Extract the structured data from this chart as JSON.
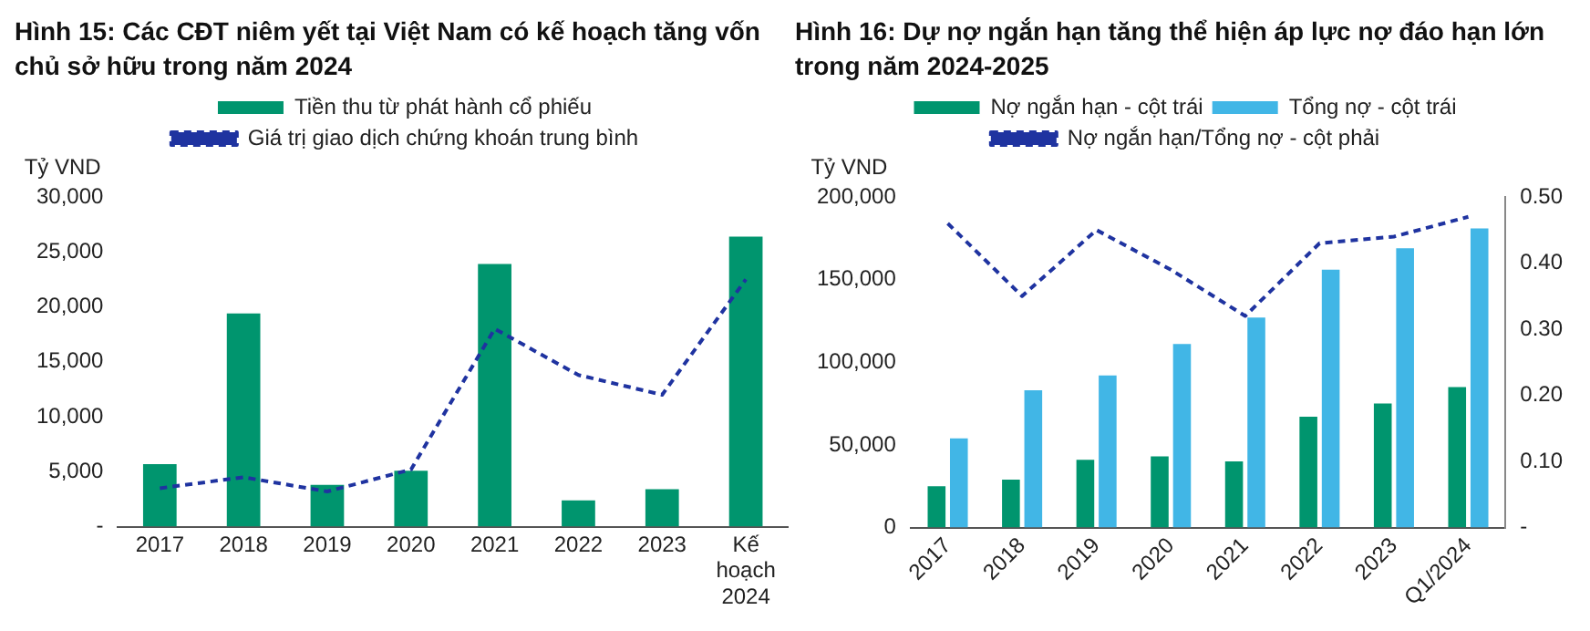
{
  "chart_data": [
    {
      "type": "bar",
      "title": "Hình 15: Các CĐT niêm yết tại Việt Nam có kế hoạch tăng vốn chủ sở hữu trong năm 2024",
      "ylabel": "Tỷ VND",
      "categories": [
        "2017",
        "2018",
        "2019",
        "2020",
        "2021",
        "2022",
        "2023",
        "Kế hoạch 2024"
      ],
      "series": [
        {
          "name": "Tiền thu từ phát hành cổ phiếu",
          "type": "bar",
          "color": "#00956e",
          "values": [
            5700,
            19400,
            3800,
            5100,
            23900,
            2400,
            3400,
            26400
          ]
        },
        {
          "name": "Giá trị giao dịch chứng khoán trung bình",
          "type": "line",
          "color": "#1f33a0",
          "line_style": "dashed",
          "marker": "none",
          "values": [
            3500,
            4500,
            3200,
            5200,
            18000,
            13800,
            12000,
            22500
          ]
        }
      ],
      "ylim": [
        0,
        30000
      ],
      "yticks": [
        {
          "value": 0,
          "label": "-"
        },
        {
          "value": 5000,
          "label": "5,000"
        },
        {
          "value": 10000,
          "label": "10,000"
        },
        {
          "value": 15000,
          "label": "15,000"
        },
        {
          "value": 20000,
          "label": "20,000"
        },
        {
          "value": 25000,
          "label": "25,000"
        },
        {
          "value": 30000,
          "label": "30,000"
        }
      ],
      "grid": false,
      "legend": "top"
    },
    {
      "type": "bar",
      "title": "Hình 16: Dự nợ ngắn hạn tăng thể hiện áp lực nợ đáo hạn lớn trong năm 2024-2025",
      "ylabel": "Tỷ VND",
      "categories": [
        "2017",
        "2018",
        "2019",
        "2020",
        "2021",
        "2022",
        "2023",
        "Q1/2024"
      ],
      "series": [
        {
          "name": "Nợ ngắn hạn - cột trái",
          "type": "bar",
          "color": "#00956e",
          "values": [
            25000,
            29000,
            41000,
            43000,
            40000,
            67000,
            75000,
            85000
          ]
        },
        {
          "name": "Tổng nợ - cột trái",
          "type": "bar",
          "color": "#41b6e6",
          "values": [
            54000,
            83000,
            92000,
            111000,
            127000,
            156000,
            169000,
            181000
          ]
        },
        {
          "name": "Nợ ngắn hạn/Tổng nợ - cột phải",
          "type": "line",
          "axis": "y2",
          "color": "#1f33a0",
          "line_style": "dashed",
          "marker": "none",
          "values": [
            0.46,
            0.35,
            0.45,
            0.39,
            0.32,
            0.43,
            0.44,
            0.47
          ]
        }
      ],
      "ylim": [
        0,
        200000
      ],
      "yticks": [
        {
          "value": 0,
          "label": "0"
        },
        {
          "value": 50000,
          "label": "50,000"
        },
        {
          "value": 100000,
          "label": "100,000"
        },
        {
          "value": 150000,
          "label": "150,000"
        },
        {
          "value": 200000,
          "label": "200,000"
        }
      ],
      "y2lim": [
        0,
        0.5
      ],
      "y2ticks": [
        {
          "value": 0,
          "label": "-"
        },
        {
          "value": 0.1,
          "label": "0.10"
        },
        {
          "value": 0.2,
          "label": "0.20"
        },
        {
          "value": 0.3,
          "label": "0.30"
        },
        {
          "value": 0.4,
          "label": "0.40"
        },
        {
          "value": 0.5,
          "label": "0.50"
        }
      ],
      "grid": false,
      "legend": "top"
    }
  ]
}
